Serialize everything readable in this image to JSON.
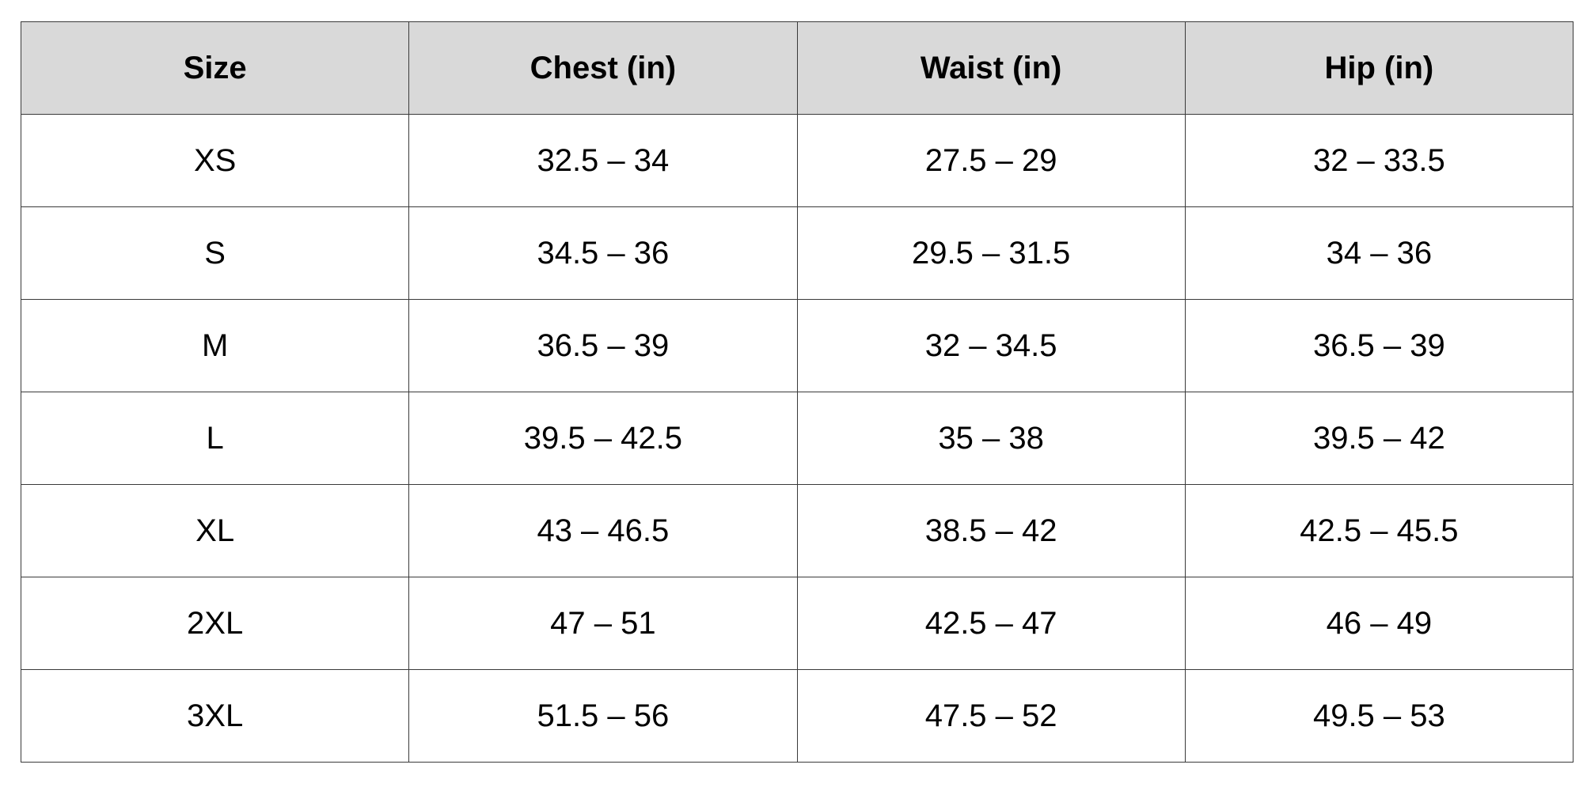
{
  "table": {
    "header_bg": "#d9d9d9",
    "border_color": "#3a3a3a",
    "columns": [
      "Size",
      "Chest (in)",
      "Waist (in)",
      "Hip (in)"
    ],
    "rows": [
      [
        "XS",
        "32.5 – 34",
        "27.5 – 29",
        "32 – 33.5"
      ],
      [
        "S",
        "34.5 – 36",
        "29.5 – 31.5",
        "34 – 36"
      ],
      [
        "M",
        "36.5 – 39",
        "32 – 34.5",
        "36.5 – 39"
      ],
      [
        "L",
        "39.5 – 42.5",
        "35 – 38",
        "39.5 – 42"
      ],
      [
        "XL",
        "43 – 46.5",
        "38.5 – 42",
        "42.5 – 45.5"
      ],
      [
        "2XL",
        "47 – 51",
        "42.5 – 47",
        "46 – 49"
      ],
      [
        "3XL",
        "51.5 – 56",
        "47.5 – 52",
        "49.5 – 53"
      ]
    ]
  }
}
